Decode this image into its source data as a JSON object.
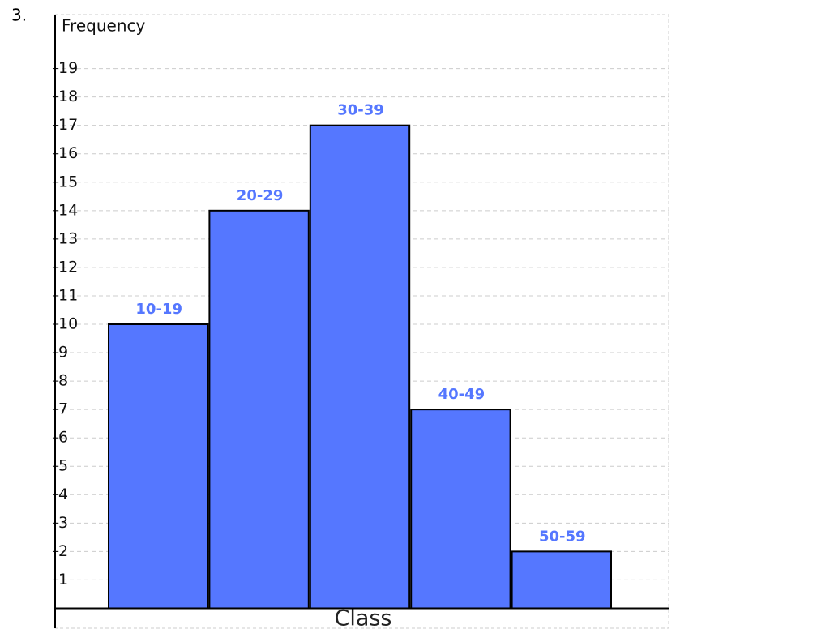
{
  "problem_number": "3.",
  "chart_data": {
    "type": "bar",
    "x_label": "Class",
    "y_label": "Frequency",
    "categories": [
      "10-19",
      "20-29",
      "30-39",
      "40-49",
      "50-59"
    ],
    "values": [
      10,
      14,
      17,
      7,
      2
    ],
    "color": "#5577ff",
    "ylim": [
      -0.7,
      20.9
    ],
    "yticks": [
      1,
      2,
      3,
      4,
      5,
      6,
      7,
      8,
      9,
      10,
      11,
      12,
      13,
      14,
      15,
      16,
      17,
      18,
      19
    ],
    "grid": true
  }
}
